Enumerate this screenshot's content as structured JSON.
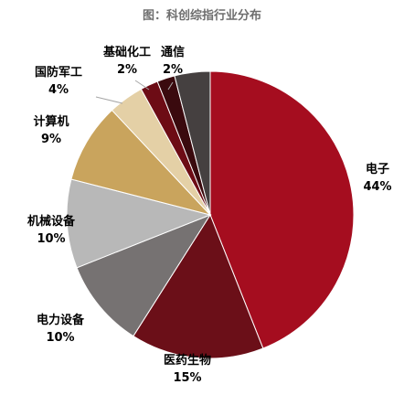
{
  "chart_data": {
    "type": "pie",
    "title": "图：科创综指行业分布",
    "slices": [
      {
        "name": "电子",
        "value": 44,
        "label": "44%",
        "color": "#a50d1f"
      },
      {
        "name": "医药生物",
        "value": 15,
        "label": "15%",
        "color": "#6b0f18"
      },
      {
        "name": "电力设备",
        "value": 10,
        "label": "10%",
        "color": "#767272"
      },
      {
        "name": "机械设备",
        "value": 10,
        "label": "10%",
        "color": "#b8b8b8"
      },
      {
        "name": "计算机",
        "value": 9,
        "label": "9%",
        "color": "#c9a45d"
      },
      {
        "name": "国防军工",
        "value": 4,
        "label": "4%",
        "color": "#e4d0a6"
      },
      {
        "name": "基础化工",
        "value": 2,
        "label": "2%",
        "color": "#6d0c15"
      },
      {
        "name": "通信",
        "value": 2,
        "label": "2%",
        "color": "#3a0a0e"
      },
      {
        "name": "",
        "value": 4,
        "label": "",
        "color": "#454040"
      }
    ]
  }
}
